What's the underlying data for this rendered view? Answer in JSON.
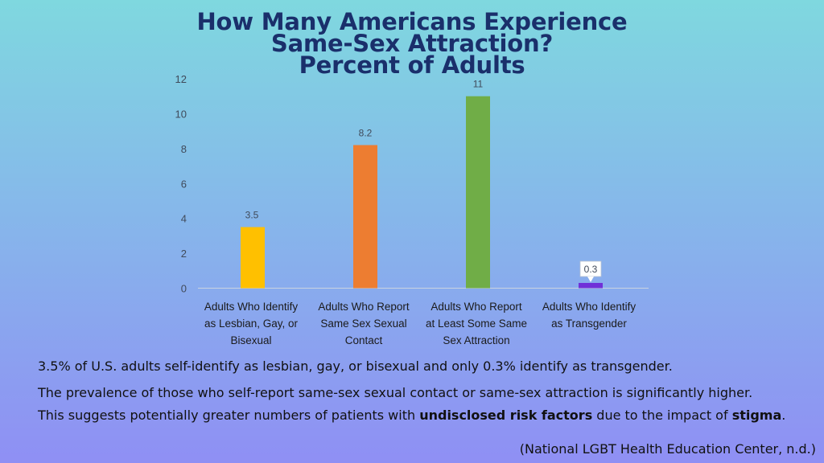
{
  "chart_data": {
    "type": "bar",
    "title": [
      "How Many Americans Experience",
      "Same-Sex Attraction?",
      "Percent of Adults"
    ],
    "categories": [
      [
        "Adults Who Identify",
        "as Lesbian, Gay, or",
        "Bisexual"
      ],
      [
        "Adults Who Report",
        "Same Sex Sexual",
        "Contact"
      ],
      [
        "Adults Who Report",
        "at Least Some Same",
        "Sex Attraction"
      ],
      [
        "Adults Who Identify",
        "as Transgender"
      ]
    ],
    "values": [
      3.5,
      8.2,
      11,
      0.3
    ],
    "data_labels": [
      "3.5",
      "8.2",
      "11",
      "0.3"
    ],
    "colors": [
      "#ffc000",
      "#ed7d31",
      "#70ad47",
      "#7030d8"
    ],
    "ylim": [
      0,
      12
    ],
    "yticks": [
      0,
      2,
      4,
      6,
      8,
      10,
      12
    ],
    "xlabel": "",
    "ylabel": "",
    "grid": false
  },
  "text": {
    "line1": "3.5% of U.S. adults self-identify as lesbian, gay, or bisexual and only 0.3% identify as transgender.",
    "line2": "The prevalence of those who self-report same-sex sexual contact or same-sex attraction is significantly higher.",
    "line3_pre": "This suggests potentially greater numbers of patients with ",
    "line3_bold1": "undisclosed risk factors",
    "line3_mid": " due to the impact of ",
    "line3_bold2": "stigma",
    "line3_end": ".",
    "citation": "(National LGBT Health Education Center, n.d.)"
  }
}
